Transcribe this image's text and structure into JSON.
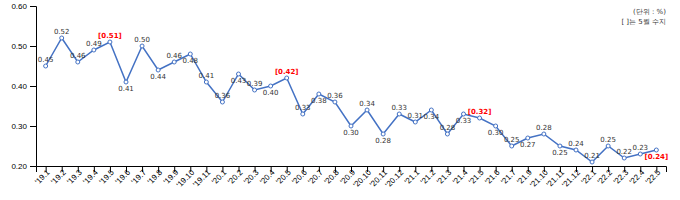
{
  "chart_data": {
    "type": "line",
    "categories": [
      "'19.1",
      "'19.2",
      "'19.3",
      "'19.4",
      "'19.5",
      "'19.6",
      "'19.7",
      "'19.8",
      "'19.9",
      "'19.10",
      "'19.11",
      "'20.1",
      "'20.2",
      "'20.3",
      "'20.4",
      "'20.5",
      "'20.6",
      "'20.7",
      "'20.8",
      "'20.9",
      "'20.10",
      "'20.11",
      "'20.12",
      "'21.1",
      "'21.2",
      "'21.3",
      "'21.4",
      "'21.5",
      "'21.6",
      "'21.7",
      "'21.9",
      "'21.10",
      "'21.11",
      "'21.12",
      "'22.1",
      "'22.2",
      "'22.3",
      "'22.4",
      "'22.5"
    ],
    "values": [
      0.45,
      0.52,
      0.46,
      0.49,
      0.51,
      0.41,
      0.5,
      0.44,
      0.46,
      0.48,
      0.41,
      0.36,
      0.43,
      0.39,
      0.4,
      0.42,
      0.33,
      0.38,
      0.36,
      0.3,
      0.34,
      0.28,
      0.33,
      0.31,
      0.34,
      0.28,
      0.33,
      0.32,
      0.3,
      0.25,
      0.27,
      0.28,
      0.25,
      0.24,
      0.21,
      0.25,
      0.22,
      0.23,
      0.24
    ],
    "value_labels": [
      "0.45",
      "0.52",
      "0.46",
      "0.49",
      "[0.51]",
      "0.41",
      "0.50",
      "0.44",
      "0.46",
      "0.48",
      "0.41",
      "0.36",
      "0.43",
      "0.39",
      "0.40",
      "[0.42]",
      "0.33",
      "0.38",
      "0.36",
      "0.30",
      "0.34",
      "0.28",
      "0.33",
      "0.31",
      "0.34",
      "0.28",
      "0.33",
      "[0.32]",
      "0.30",
      "0.25",
      "0.27",
      "0.28",
      "0.25",
      "0.24",
      "0.21",
      "0.25",
      "0.22",
      "0.23",
      "[0.24]"
    ],
    "data_labels": true,
    "color": "#4472C4",
    "marker": "circle",
    "ylim": [
      0.2,
      0.6
    ],
    "yticks": [
      {
        "value": 0.2,
        "label": "0.20"
      },
      {
        "value": 0.3,
        "label": "0.30"
      },
      {
        "value": 0.4,
        "label": "0.40"
      },
      {
        "value": 0.5,
        "label": "0.50"
      },
      {
        "value": 0.6,
        "label": "0.60"
      }
    ],
    "annotations": [
      "(단위 : %)",
      "[  ]는 5월 수지"
    ]
  }
}
